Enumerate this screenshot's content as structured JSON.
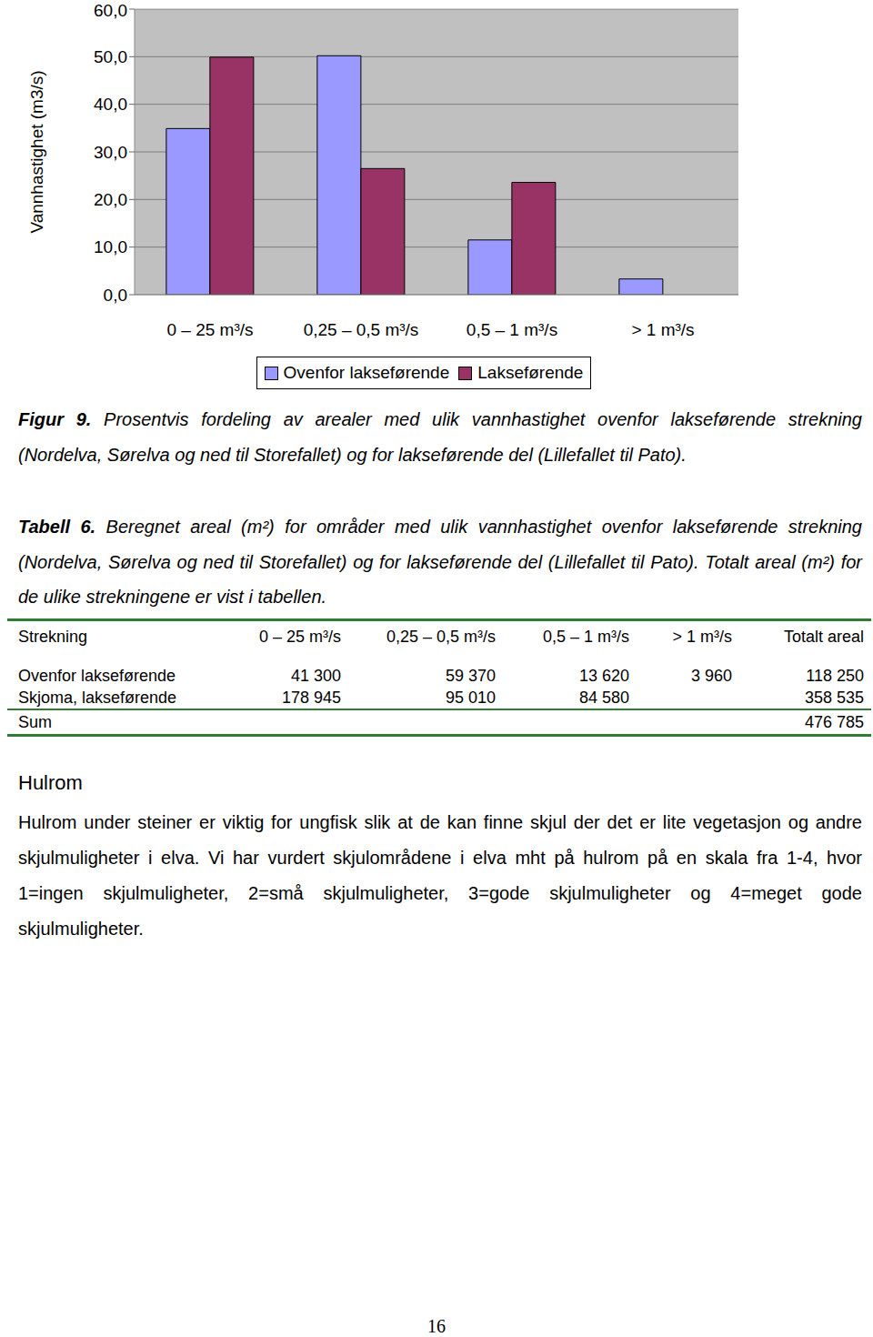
{
  "chart_data": {
    "type": "bar",
    "y_label": "Vannhastighet (m3/s)",
    "categories": [
      "0 – 25 m³/s",
      "0,25 – 0,5 m³/s",
      "0,5 – 1 m³/s",
      "> 1 m³/s"
    ],
    "series": [
      {
        "name": "Ovenfor lakseførende",
        "color": "#9999ff",
        "values": [
          34.9,
          50.2,
          11.5,
          3.3
        ]
      },
      {
        "name": "Lakseførende",
        "color": "#993366",
        "values": [
          49.9,
          26.5,
          23.6,
          null
        ]
      }
    ],
    "ylim": [
      0,
      60
    ],
    "yticks": [
      {
        "value": 0,
        "label": "0,0"
      },
      {
        "value": 10,
        "label": "10,0"
      },
      {
        "value": 20,
        "label": "20,0"
      },
      {
        "value": 30,
        "label": "30,0"
      },
      {
        "value": 40,
        "label": "40,0"
      },
      {
        "value": 50,
        "label": "50,0"
      },
      {
        "value": 60,
        "label": "60,0"
      }
    ],
    "grid": true,
    "legend": "bottom"
  },
  "figure_caption": {
    "label": "Figur 9.",
    "text": "Prosentvis fordeling av arealer med ulik vannhastighet ovenfor lakseførende strekning (Nordelva, Sørelva og ned til Storefallet) og for lakseførende del (Lillefallet til Pato)."
  },
  "table_caption": {
    "label": "Tabell 6.",
    "text": "Beregnet areal (m²) for områder med ulik vannhastighet ovenfor lakseførende strekning (Nordelva, Sørelva og ned til Storefallet) og for lakseførende del (Lillefallet til Pato). Totalt areal (m²) for de ulike strekningene er vist i tabellen."
  },
  "table": {
    "header": [
      "Strekning",
      "0 – 25 m³/s",
      "0,25 – 0,5 m³/s",
      "0,5 – 1 m³/s",
      "> 1 m³/s",
      "Totalt areal"
    ],
    "rows": [
      [
        "Ovenfor lakseførende",
        "41 300",
        "59 370",
        "13 620",
        "3 960",
        "118 250"
      ],
      [
        "Skjoma, lakseførende",
        "178 945",
        "95 010",
        "84 580",
        null,
        "358 535"
      ]
    ],
    "sum_row": [
      "Sum",
      null,
      null,
      null,
      null,
      "476 785"
    ]
  },
  "section": {
    "heading": "Hulrom",
    "paragraphs": [
      "Hulrom under steiner er viktig for ungfisk slik at de kan finne skjul der det er lite vegetasjon og andre skjulmuligheter i elva. Vi har vurdert skjulområdene i elva mht på hulrom på en skala fra 1-4, hvor 1=ingen skjulmuligheter, 2=små skjulmuligheter, 3=gode skjulmuligheter og 4=meget gode skjulmuligheter."
    ]
  },
  "page_number": "16"
}
